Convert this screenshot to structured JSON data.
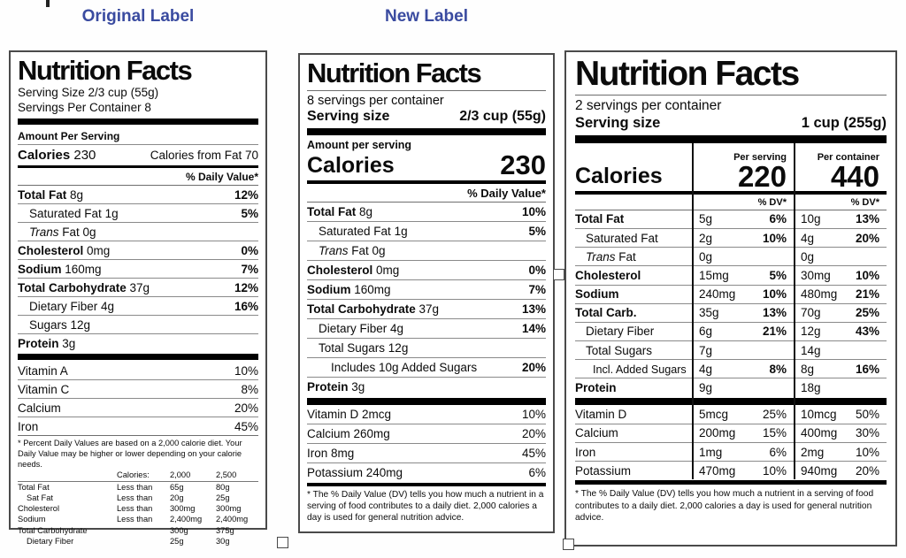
{
  "page": {
    "header_original": "Original Label",
    "header_new": "New Label",
    "accent_color": "#3a4ba0"
  },
  "original": {
    "title": "Nutrition Facts",
    "serving_size": "Serving Size 2/3 cup (55g)",
    "servings_per_container": "Servings Per Container 8",
    "amount_per_serving": "Amount Per Serving",
    "calories_label": "Calories",
    "calories_value": "230",
    "calories_from_fat": "Calories from Fat 70",
    "daily_value_header": "% Daily Value*",
    "rows": [
      {
        "name": "Total Fat",
        "amount": "8g",
        "dv": "12%",
        "bold": true
      },
      {
        "name": "Saturated Fat",
        "amount": "1g",
        "dv": "5%",
        "indent": 1
      },
      {
        "prefix_italic": "Trans",
        "name": "Fat",
        "amount": "0g",
        "dv": "",
        "indent": 1
      },
      {
        "name": "Cholesterol",
        "amount": "0mg",
        "dv": "0%",
        "bold": true
      },
      {
        "name": "Sodium",
        "amount": "160mg",
        "dv": "7%",
        "bold": true
      },
      {
        "name": "Total Carbohydrate",
        "amount": "37g",
        "dv": "12%",
        "bold": true
      },
      {
        "name": "Dietary Fiber",
        "amount": "4g",
        "dv": "16%",
        "indent": 1
      },
      {
        "name": "Sugars",
        "amount": "12g",
        "dv": "",
        "indent": 1
      },
      {
        "name": "Protein",
        "amount": "3g",
        "dv": "",
        "bold": true
      }
    ],
    "vitamins": [
      {
        "name": "Vitamin A",
        "dv": "10%"
      },
      {
        "name": "Vitamin C",
        "dv": "8%"
      },
      {
        "name": "Calcium",
        "dv": "20%"
      },
      {
        "name": "Iron",
        "dv": "45%"
      }
    ],
    "footnote": "* Percent Daily Values are based on a 2,000 calorie diet. Your Daily Value may be higher or lower depending on your calorie needs.",
    "footnote_table": {
      "header": [
        "",
        "Calories:",
        "2,000",
        "2,500"
      ],
      "rows": [
        {
          "cells": [
            "Total Fat",
            "Less than",
            "65g",
            "80g"
          ]
        },
        {
          "cells": [
            "Sat Fat",
            "Less than",
            "20g",
            "25g"
          ],
          "indent": true
        },
        {
          "cells": [
            "Cholesterol",
            "Less than",
            "300mg",
            "300mg"
          ]
        },
        {
          "cells": [
            "Sodium",
            "Less than",
            "2,400mg",
            "2,400mg"
          ]
        },
        {
          "cells": [
            "Total Carbohydrate",
            "",
            "300g",
            "375g"
          ]
        },
        {
          "cells": [
            "Dietary Fiber",
            "",
            "25g",
            "30g"
          ],
          "indent": true
        }
      ]
    }
  },
  "new_label": {
    "title": "Nutrition Facts",
    "servings_per_container": "8 servings per container",
    "serving_size_label": "Serving size",
    "serving_size_value": "2/3 cup (55g)",
    "amount_per_serving": "Amount per serving",
    "calories_label": "Calories",
    "calories_value": "230",
    "daily_value_header": "% Daily Value*",
    "rows": [
      {
        "name": "Total Fat",
        "amount": "8g",
        "dv": "10%",
        "bold": true
      },
      {
        "name": "Saturated Fat",
        "amount": "1g",
        "dv": "5%",
        "indent": 1
      },
      {
        "prefix_italic": "Trans",
        "name": "Fat",
        "amount": "0g",
        "dv": "",
        "indent": 1
      },
      {
        "name": "Cholesterol",
        "amount": "0mg",
        "dv": "0%",
        "bold": true
      },
      {
        "name": "Sodium",
        "amount": "160mg",
        "dv": "7%",
        "bold": true
      },
      {
        "name": "Total Carbohydrate",
        "amount": "37g",
        "dv": "13%",
        "bold": true
      },
      {
        "name": "Dietary Fiber",
        "amount": "4g",
        "dv": "14%",
        "indent": 1
      },
      {
        "name": "Total Sugars",
        "amount": "12g",
        "dv": "",
        "indent": 1
      },
      {
        "name": "Includes 10g Added Sugars",
        "amount": "",
        "dv": "20%",
        "indent": 2
      },
      {
        "name": "Protein",
        "amount": "3g",
        "dv": "",
        "bold": true
      }
    ],
    "vitamins": [
      {
        "name": "Vitamin D",
        "amount": "2mcg",
        "dv": "10%"
      },
      {
        "name": "Calcium",
        "amount": "260mg",
        "dv": "20%"
      },
      {
        "name": "Iron",
        "amount": "8mg",
        "dv": "45%"
      },
      {
        "name": "Potassium",
        "amount": "240mg",
        "dv": "6%"
      }
    ],
    "footnote": "* The % Daily Value (DV) tells you how much a nutrient in a serving of food contributes to a daily diet. 2,000 calories a day is used for general nutrition advice."
  },
  "dual": {
    "title": "Nutrition Facts",
    "servings_per_container": "2 servings per container",
    "serving_size_label": "Serving size",
    "serving_size_value": "1 cup (255g)",
    "calories_label": "Calories",
    "per_serving_header": "Per serving",
    "per_serving_calories": "220",
    "per_container_header": "Per container",
    "per_container_calories": "440",
    "dv_header": "% DV*",
    "rows": [
      {
        "name": "Total Fat",
        "bold": true,
        "s_amount": "5g",
        "s_dv": "6%",
        "c_amount": "10g",
        "c_dv": "13%"
      },
      {
        "name": "Saturated Fat",
        "indent": 1,
        "s_amount": "2g",
        "s_dv": "10%",
        "c_amount": "4g",
        "c_dv": "20%"
      },
      {
        "prefix_italic": "Trans",
        "name": "Fat",
        "indent": 1,
        "s_amount": "0g",
        "s_dv": "",
        "c_amount": "0g",
        "c_dv": ""
      },
      {
        "name": "Cholesterol",
        "bold": true,
        "s_amount": "15mg",
        "s_dv": "5%",
        "c_amount": "30mg",
        "c_dv": "10%"
      },
      {
        "name": "Sodium",
        "bold": true,
        "s_amount": "240mg",
        "s_dv": "10%",
        "c_amount": "480mg",
        "c_dv": "21%"
      },
      {
        "name": "Total Carb.",
        "bold": true,
        "s_amount": "35g",
        "s_dv": "13%",
        "c_amount": "70g",
        "c_dv": "25%"
      },
      {
        "name": "Dietary Fiber",
        "indent": 1,
        "s_amount": "6g",
        "s_dv": "21%",
        "c_amount": "12g",
        "c_dv": "43%"
      },
      {
        "name": "Total Sugars",
        "indent": 1,
        "s_amount": "7g",
        "s_dv": "",
        "c_amount": "14g",
        "c_dv": ""
      },
      {
        "name": "Incl. Added Sugars",
        "indent": 2,
        "s_amount": "4g",
        "s_dv": "8%",
        "c_amount": "8g",
        "c_dv": "16%"
      },
      {
        "name": "Protein",
        "bold": true,
        "s_amount": "9g",
        "s_dv": "",
        "c_amount": "18g",
        "c_dv": "",
        "bar_after": true
      }
    ],
    "vitamins": [
      {
        "name": "Vitamin D",
        "s_amount": "5mcg",
        "s_dv": "25%",
        "c_amount": "10mcg",
        "c_dv": "50%"
      },
      {
        "name": "Calcium",
        "s_amount": "200mg",
        "s_dv": "15%",
        "c_amount": "400mg",
        "c_dv": "30%"
      },
      {
        "name": "Iron",
        "s_amount": "1mg",
        "s_dv": "6%",
        "c_amount": "2mg",
        "c_dv": "10%"
      },
      {
        "name": "Potassium",
        "s_amount": "470mg",
        "s_dv": "10%",
        "c_amount": "940mg",
        "c_dv": "20%"
      }
    ],
    "footnote": "* The % Daily Value (DV) tells you how much a nutrient in a serving of food contributes to a daily diet. 2,000 calories a day is used for general nutrition advice."
  }
}
